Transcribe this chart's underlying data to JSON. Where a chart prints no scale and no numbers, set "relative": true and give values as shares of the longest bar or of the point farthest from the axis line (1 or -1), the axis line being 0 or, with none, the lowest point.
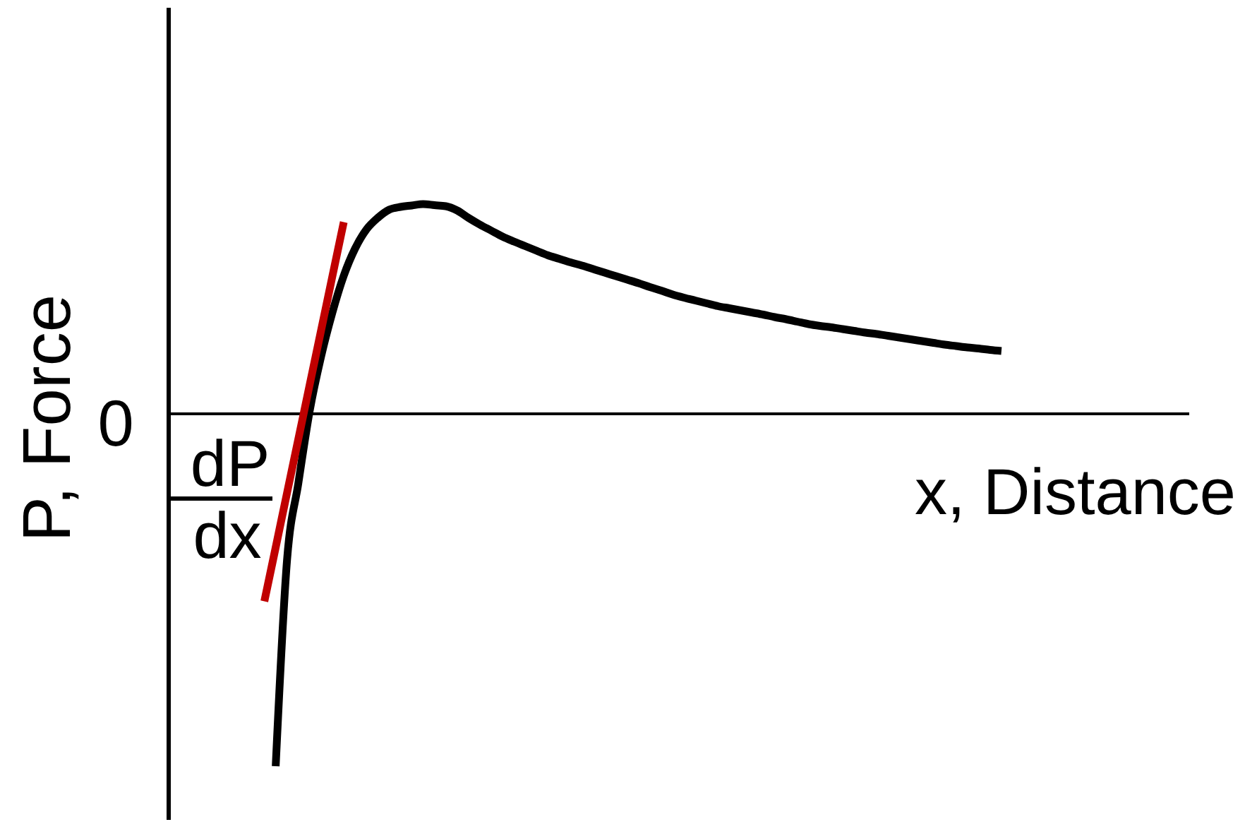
{
  "chart_data": {
    "type": "line",
    "relative": true,
    "xlabel": "x, Distance",
    "ylabel": "P, Force",
    "annotations": [
      "0",
      "dP",
      "dx"
    ],
    "categories": [
      null,
      null,
      null,
      null,
      null,
      null,
      null,
      null,
      null,
      null,
      null,
      null,
      null,
      null,
      null,
      null,
      null,
      null,
      null,
      null,
      null,
      null,
      null,
      null,
      null,
      null,
      null,
      null,
      null,
      null,
      null,
      null,
      null,
      null,
      null,
      null,
      null,
      null,
      null,
      null,
      null,
      null,
      null,
      null,
      null,
      null,
      null,
      null,
      null,
      null,
      null,
      null,
      null,
      null,
      null,
      null,
      null,
      null,
      null,
      null,
      null,
      null,
      null,
      null,
      null,
      null,
      null,
      null,
      null,
      null,
      null,
      null,
      null,
      null,
      null,
      null,
      null,
      null,
      null,
      null,
      null,
      null,
      null,
      null,
      null,
      null,
      null,
      null,
      null,
      null
    ],
    "series": [
      {
        "color": "#000000",
        "values": [
          null,
          null,
          null,
          null,
          null,
          null,
          null,
          null,
          null,
          -1,
          -0.416,
          -0.198,
          0.007,
          0.16,
          0.285,
          0.389,
          0.466,
          0.52,
          0.553,
          0.576,
          0.584,
          0.588,
          0.592,
          0.589,
          0.586,
          0.574,
          0.553,
          0.534,
          0.517,
          0.5,
          0.486,
          0.473,
          0.46,
          0.447,
          0.437,
          0.427,
          0.418,
          0.408,
          0.398,
          0.388,
          0.378,
          0.368,
          0.357,
          0.347,
          0.336,
          0.327,
          0.319,
          0.311,
          0.303,
          0.297,
          0.291,
          0.285,
          0.279,
          0.272,
          0.266,
          0.259,
          0.252,
          0.247,
          0.243,
          0.238,
          0.233,
          0.228,
          0.224,
          0.219,
          0.214,
          0.209,
          0.204,
          0.199,
          0.194,
          0.19,
          0.186,
          0.183,
          0.179,
          0.176,
          null,
          null,
          null,
          null,
          null,
          null,
          null,
          null,
          null,
          null,
          null,
          null,
          null,
          null,
          null,
          null
        ]
      },
      {
        "color": "#c00000",
        "values": [
          null,
          null,
          null,
          null,
          null,
          null,
          null,
          null,
          -0.533,
          -0.38,
          -0.226,
          -0.073,
          0.081,
          0.234,
          0.388,
          0.541,
          null,
          null,
          null,
          null,
          null,
          null,
          null,
          null,
          null,
          null,
          null,
          null,
          null,
          null,
          null,
          null,
          null,
          null,
          null,
          null,
          null,
          null,
          null,
          null,
          null,
          null,
          null,
          null,
          null,
          null,
          null,
          null,
          null,
          null,
          null,
          null,
          null,
          null,
          null,
          null,
          null,
          null,
          null,
          null,
          null,
          null,
          null,
          null,
          null,
          null,
          null,
          null,
          null,
          null,
          null,
          null,
          null,
          null,
          null,
          null,
          null,
          null,
          null,
          null,
          null,
          null,
          null,
          null,
          null,
          null,
          null,
          null,
          null,
          null
        ]
      }
    ]
  }
}
